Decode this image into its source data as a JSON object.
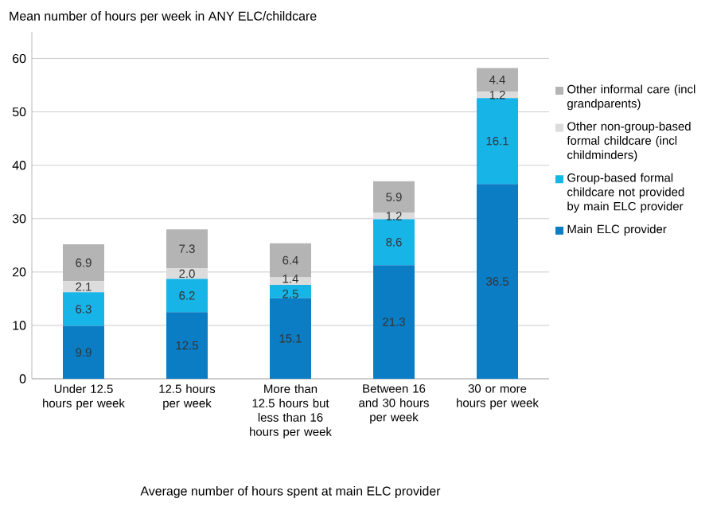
{
  "chart_data": {
    "type": "bar",
    "stacked": true,
    "ylabel": "Mean number of hours per week in ANY ELC/childcare",
    "xlabel": "Average number of hours spent at main ELC provider",
    "categories": [
      "Under 12.5 hours per week",
      "12.5 hours per week",
      "More than 12.5 hours but less than 16 hours per week",
      "Between 16 and 30 hours per week",
      "30 or more hours per week"
    ],
    "series": [
      {
        "name": "Main ELC provider",
        "color": "#0b7dc4",
        "values": [
          9.9,
          12.5,
          15.1,
          21.3,
          36.5
        ],
        "value_labels": [
          "9.9",
          "12.5",
          "15.1",
          "21.3",
          "36.5"
        ]
      },
      {
        "name": "Group-based formal childcare not provided by main ELC provider",
        "color": "#17b4e8",
        "values": [
          6.3,
          6.2,
          2.5,
          8.6,
          16.1
        ],
        "value_labels": [
          "6.3",
          "6.2",
          "2.5",
          "8.6",
          "16.1"
        ]
      },
      {
        "name": "Other non-group-based formal childcare (incl childminders)",
        "color": "#dcdcdc",
        "values": [
          2.1,
          2.0,
          1.4,
          1.2,
          1.2
        ],
        "value_labels": [
          "2.1",
          "2.0",
          "1.4",
          "1.2",
          "1.2"
        ]
      },
      {
        "name": "Other informal care (incl grandparents)",
        "color": "#b4b4b4",
        "values": [
          6.9,
          7.3,
          6.4,
          5.9,
          4.4
        ],
        "value_labels": [
          "6.9",
          "7.3",
          "6.4",
          "5.9",
          "4.4"
        ]
      }
    ],
    "ylim": [
      0,
      65
    ],
    "yticks": [
      0,
      10,
      20,
      30,
      40,
      50,
      60
    ],
    "grid": "y",
    "legend": "right"
  }
}
